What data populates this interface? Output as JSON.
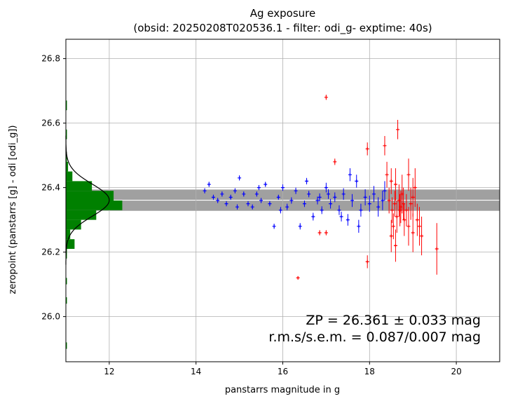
{
  "chart_data": {
    "type": "scatter",
    "title": "Ag exposure",
    "subtitle": "(obsid: 20250208T020536.1 - filter: odi_g- exptime: 40s)",
    "xlabel": "panstarrs magnitude in g",
    "ylabel": "zeropoint (panstarrs [g] - odi [odi_g])",
    "xlim": [
      11.0,
      21.0
    ],
    "ylim": [
      25.86,
      26.86
    ],
    "xticks": [
      12,
      14,
      16,
      18,
      20
    ],
    "yticks": [
      26.0,
      26.2,
      26.4,
      26.6,
      26.8
    ],
    "grid": true,
    "zp": 26.361,
    "zp_err": 0.033,
    "annotation_zp": "ZP = 26.361 ± 0.033 mag",
    "annotation_rms": "r.m.s/s.e.m. = 0.087/0.007 mag",
    "colors": {
      "used": "#0000ff",
      "rejected": "#ff0000",
      "band": "#a0a0a0",
      "hist": "#008000",
      "gauss": "#000000",
      "grid": "#b0b0b0"
    },
    "histogram": {
      "bins": [
        {
          "y0": 26.1,
          "y1": 26.12,
          "w": 0.02
        },
        {
          "y0": 26.18,
          "y1": 26.21,
          "w": 0.02
        },
        {
          "y0": 26.21,
          "y1": 26.24,
          "w": 0.2
        },
        {
          "y0": 26.24,
          "y1": 26.27,
          "w": 0.1
        },
        {
          "y0": 26.27,
          "y1": 26.3,
          "w": 0.35
        },
        {
          "y0": 26.3,
          "y1": 26.33,
          "w": 0.7
        },
        {
          "y0": 26.33,
          "y1": 26.36,
          "w": 1.3
        },
        {
          "y0": 26.36,
          "y1": 26.39,
          "w": 1.1
        },
        {
          "y0": 26.39,
          "y1": 26.42,
          "w": 0.6
        },
        {
          "y0": 26.42,
          "y1": 26.45,
          "w": 0.15
        },
        {
          "y0": 26.45,
          "y1": 26.48,
          "w": 0.05
        },
        {
          "y0": 26.48,
          "y1": 26.51,
          "w": 0.02
        },
        {
          "y0": 26.55,
          "y1": 26.58,
          "w": 0.02
        },
        {
          "y0": 26.64,
          "y1": 26.67,
          "w": 0.02
        },
        {
          "y0": 26.04,
          "y1": 26.06,
          "w": 0.02
        },
        {
          "y0": 25.9,
          "y1": 25.92,
          "w": 0.02
        }
      ],
      "gauss_peak_width": 1.0
    },
    "used_points": [
      [
        14.2,
        26.39,
        0.008
      ],
      [
        14.3,
        26.41,
        0.008
      ],
      [
        14.4,
        26.37,
        0.008
      ],
      [
        14.5,
        26.36,
        0.008
      ],
      [
        14.6,
        26.38,
        0.008
      ],
      [
        14.7,
        26.35,
        0.008
      ],
      [
        14.8,
        26.37,
        0.008
      ],
      [
        14.9,
        26.39,
        0.008
      ],
      [
        15.0,
        26.43,
        0.008
      ],
      [
        15.1,
        26.38,
        0.008
      ],
      [
        15.2,
        26.35,
        0.008
      ],
      [
        15.3,
        26.34,
        0.008
      ],
      [
        15.4,
        26.38,
        0.008
      ],
      [
        15.5,
        26.36,
        0.008
      ],
      [
        15.6,
        26.41,
        0.008
      ],
      [
        15.7,
        26.35,
        0.008
      ],
      [
        15.8,
        26.28,
        0.008
      ],
      [
        15.9,
        26.37,
        0.008
      ],
      [
        16.0,
        26.4,
        0.01
      ],
      [
        16.1,
        26.34,
        0.01
      ],
      [
        16.2,
        26.36,
        0.01
      ],
      [
        16.3,
        26.39,
        0.01
      ],
      [
        16.4,
        26.28,
        0.01
      ],
      [
        16.5,
        26.35,
        0.01
      ],
      [
        16.6,
        26.38,
        0.01
      ],
      [
        16.7,
        26.31,
        0.012
      ],
      [
        16.8,
        26.36,
        0.012
      ],
      [
        16.9,
        26.33,
        0.012
      ],
      [
        17.0,
        26.4,
        0.015
      ],
      [
        17.1,
        26.35,
        0.015
      ],
      [
        17.2,
        26.37,
        0.015
      ],
      [
        17.3,
        26.33,
        0.015
      ],
      [
        17.4,
        26.38,
        0.018
      ],
      [
        17.5,
        26.3,
        0.018
      ],
      [
        17.6,
        26.36,
        0.02
      ],
      [
        17.7,
        26.42,
        0.02
      ],
      [
        17.8,
        26.33,
        0.02
      ],
      [
        17.9,
        26.37,
        0.025
      ],
      [
        18.0,
        26.35,
        0.025
      ],
      [
        18.1,
        26.38,
        0.025
      ],
      [
        18.2,
        26.34,
        0.03
      ],
      [
        18.3,
        26.36,
        0.03
      ],
      [
        18.35,
        26.39,
        0.03
      ],
      [
        17.75,
        26.28,
        0.02
      ],
      [
        17.55,
        26.44,
        0.02
      ],
      [
        17.35,
        26.31,
        0.015
      ],
      [
        17.05,
        26.38,
        0.015
      ],
      [
        16.85,
        26.37,
        0.012
      ],
      [
        16.55,
        26.42,
        0.01
      ],
      [
        15.95,
        26.33,
        0.01
      ],
      [
        15.45,
        26.4,
        0.008
      ],
      [
        14.95,
        26.34,
        0.008
      ]
    ],
    "rejected_points": [
      [
        16.35,
        26.12,
        0.005
      ],
      [
        16.85,
        26.26,
        0.008
      ],
      [
        17.0,
        26.26,
        0.008
      ],
      [
        17.0,
        26.68,
        0.008
      ],
      [
        17.2,
        26.48,
        0.01
      ],
      [
        17.95,
        26.17,
        0.02
      ],
      [
        17.95,
        26.52,
        0.02
      ],
      [
        18.35,
        26.53,
        0.03
      ],
      [
        18.4,
        26.44,
        0.04
      ],
      [
        18.5,
        26.42,
        0.04
      ],
      [
        18.55,
        26.28,
        0.04
      ],
      [
        18.6,
        26.22,
        0.05
      ],
      [
        18.65,
        26.58,
        0.03
      ],
      [
        18.7,
        26.33,
        0.05
      ],
      [
        18.75,
        26.38,
        0.06
      ],
      [
        18.8,
        26.3,
        0.05
      ],
      [
        18.9,
        26.44,
        0.05
      ],
      [
        18.95,
        26.35,
        0.05
      ],
      [
        19.0,
        26.26,
        0.06
      ],
      [
        19.05,
        26.4,
        0.06
      ],
      [
        19.1,
        26.3,
        0.05
      ],
      [
        19.15,
        26.28,
        0.06
      ],
      [
        19.2,
        26.25,
        0.06
      ],
      [
        19.55,
        26.21,
        0.08
      ],
      [
        18.45,
        26.36,
        0.04
      ],
      [
        18.52,
        26.33,
        0.04
      ],
      [
        18.58,
        26.35,
        0.04
      ],
      [
        18.63,
        26.31,
        0.05
      ],
      [
        18.68,
        26.36,
        0.05
      ],
      [
        18.72,
        26.34,
        0.05
      ],
      [
        18.78,
        26.35,
        0.05
      ],
      [
        18.85,
        26.33,
        0.05
      ],
      [
        18.6,
        26.41,
        0.05
      ],
      [
        18.5,
        26.25,
        0.05
      ],
      [
        18.9,
        26.28,
        0.06
      ],
      [
        19.0,
        26.37,
        0.06
      ]
    ]
  }
}
